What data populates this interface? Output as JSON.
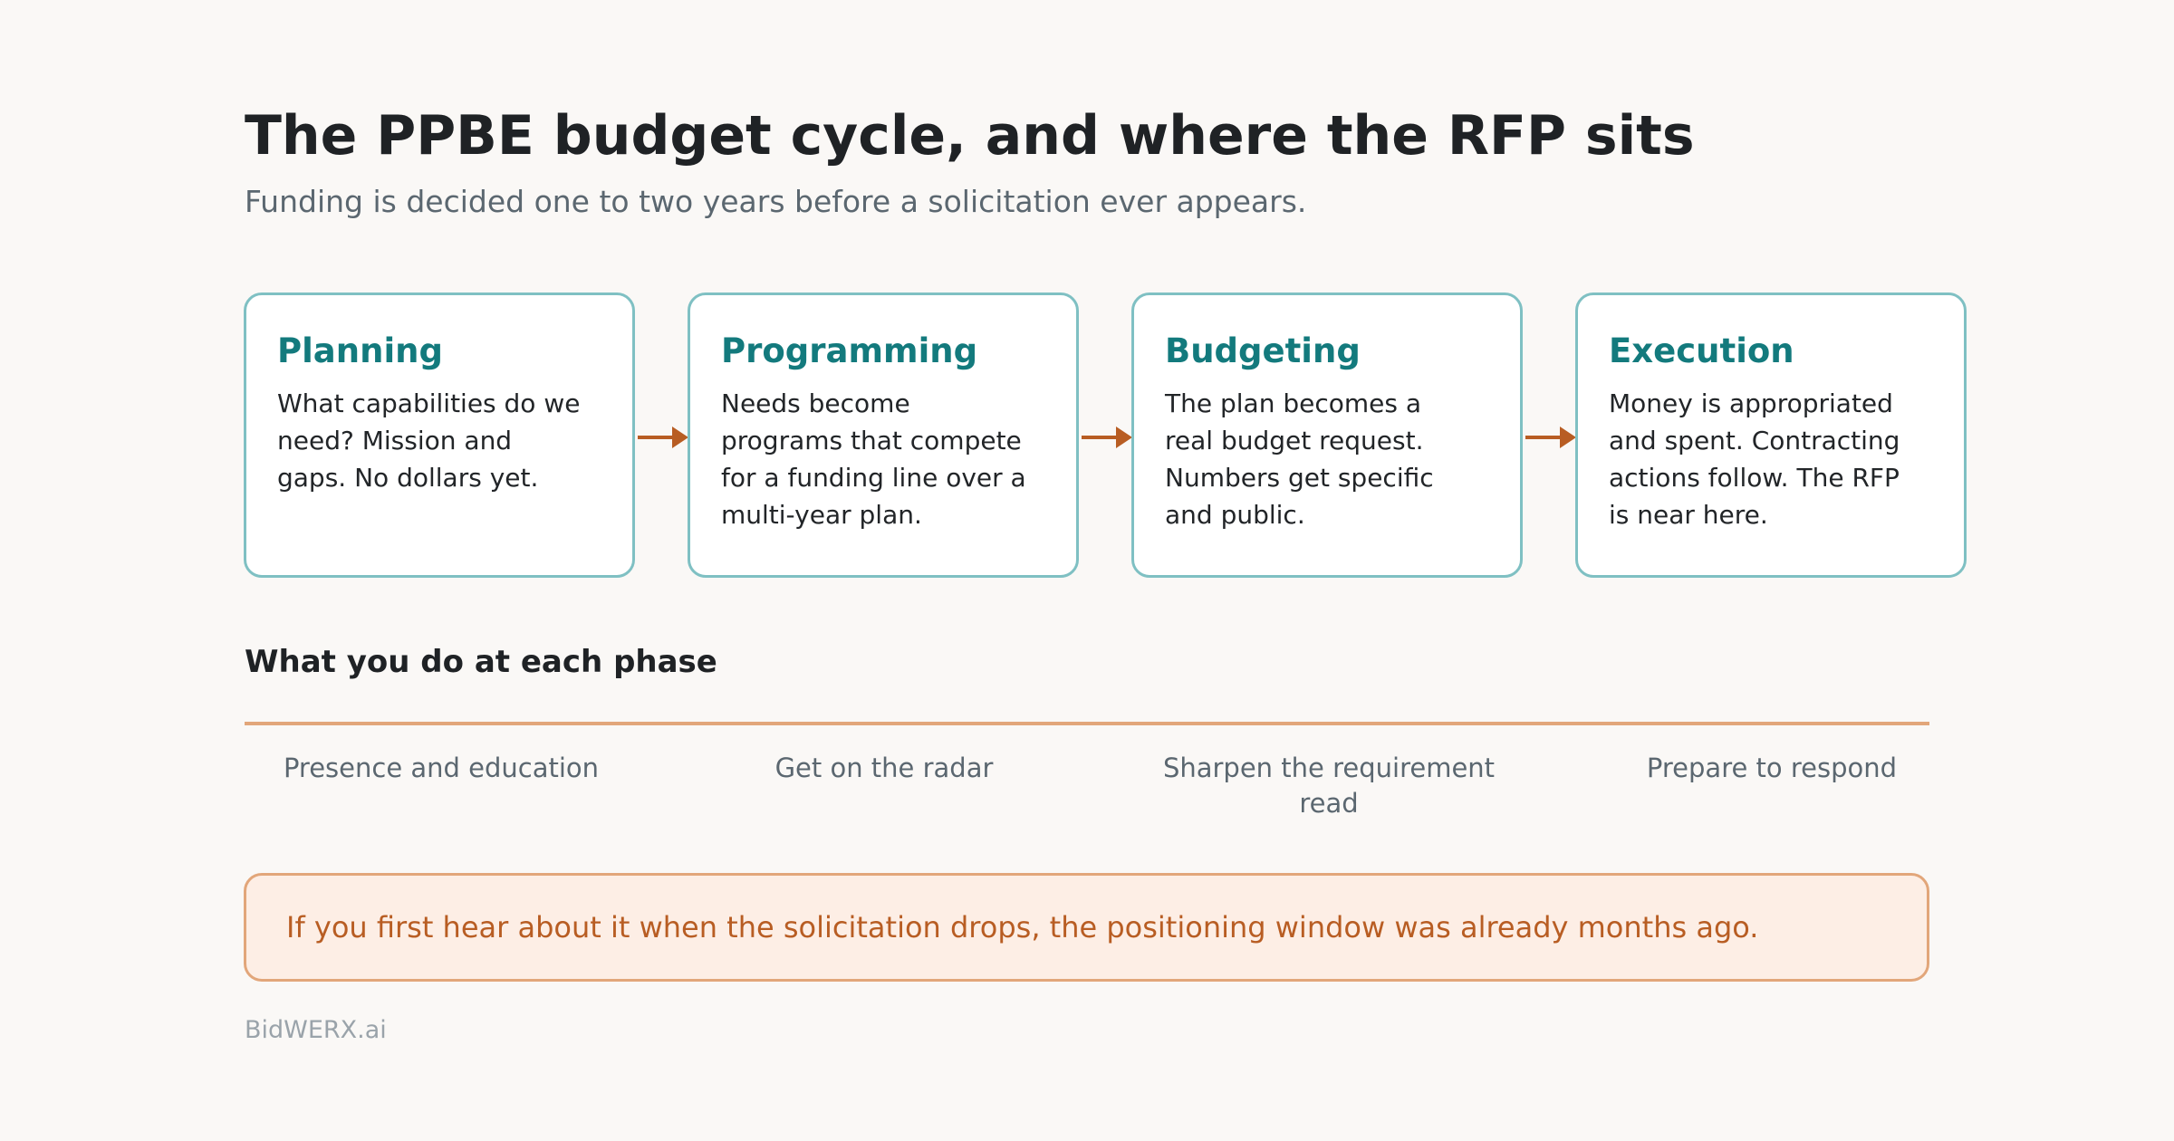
{
  "header": {
    "title": "The PPBE budget cycle, and where the RFP sits",
    "subtitle": "Funding is decided one to two years before a solicitation ever appears."
  },
  "phases": [
    {
      "title": "Planning",
      "description": "What capabilities do we need? Mission and gaps. No dollars yet."
    },
    {
      "title": "Programming",
      "description": "Needs become programs that compete for a funding line over a multi-year plan."
    },
    {
      "title": "Budgeting",
      "description": "The plan becomes a real budget request. Numbers get specific and public."
    },
    {
      "title": "Execution",
      "description": "Money is appropriated and spent. Contracting actions follow. The RFP is near here."
    }
  ],
  "actions_section": {
    "heading": "What you do at each phase",
    "items": [
      {
        "label": "Presence and education"
      },
      {
        "label": "Get on the radar"
      },
      {
        "label": "Sharpen the requirement read"
      },
      {
        "label": "Prepare to respond"
      }
    ]
  },
  "callout": {
    "text": "If you first hear about it when the solicitation drops, the positioning window was already months ago."
  },
  "footer": {
    "brand": "BidWERX.ai"
  },
  "colors": {
    "accent_teal": "#137a7d",
    "card_border": "#7fc0c3",
    "accent_orange": "#b85d23",
    "timeline": "#e2a67a",
    "callout_bg": "#fdeee5"
  }
}
